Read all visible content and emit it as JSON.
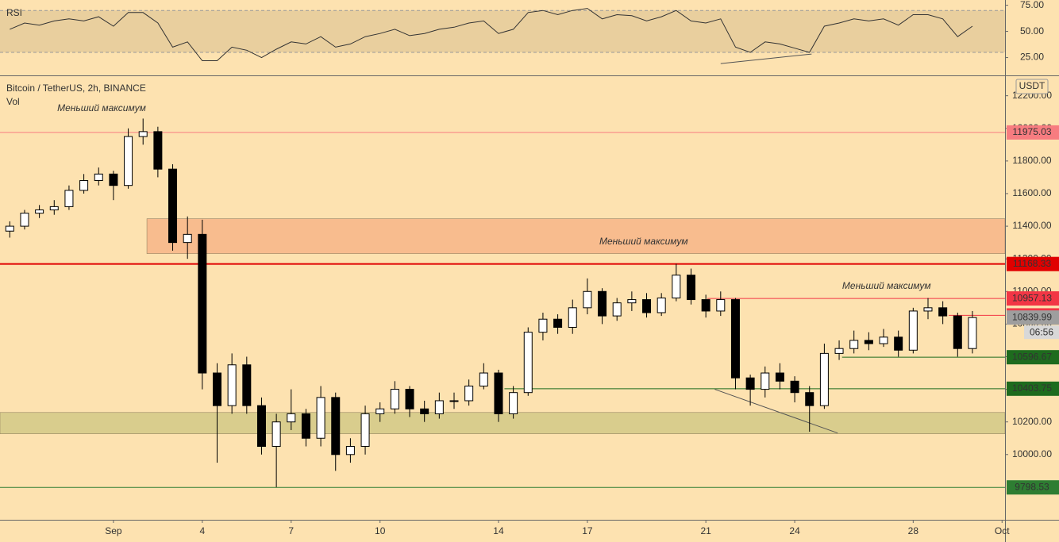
{
  "chart_data": [
    {
      "type": "candlestick",
      "title": "Bitcoin / TetherUS, 2h, BINANCE",
      "volume_label": "Vol",
      "axis_unit": "USDT",
      "x": [
        -3.5,
        -3,
        -2.5,
        -2,
        -1.5,
        -1,
        -0.5,
        0,
        0.5,
        1,
        1.5,
        2,
        2.5,
        3,
        3.5,
        4,
        4.5,
        5,
        5.5,
        6,
        6.5,
        7,
        7.5,
        8,
        8.5,
        9,
        9.5,
        10,
        10.5,
        11,
        11.5,
        12,
        12.5,
        13,
        13.5,
        14,
        14.5,
        15,
        15.5,
        16,
        16.5,
        17,
        17.5,
        18,
        18.5,
        19,
        19.5,
        20,
        20.5,
        21,
        21.5,
        22,
        22.5,
        23,
        23.5,
        24,
        24.5,
        25,
        25.5,
        26,
        26.5,
        27,
        27.5,
        28,
        28.5,
        29
      ],
      "open": [
        11370,
        11400,
        11480,
        11500,
        11520,
        11620,
        11680,
        11720,
        11650,
        11950,
        11980,
        11750,
        11300,
        11350,
        10500,
        10300,
        10550,
        10300,
        10050,
        10200,
        10250,
        10100,
        10350,
        10000,
        10050,
        10250,
        10280,
        10400,
        10280,
        10250,
        10330,
        10330,
        10420,
        10500,
        10250,
        10380,
        10750,
        10830,
        10780,
        10900,
        11000,
        10850,
        10930,
        10950,
        10870,
        10960,
        11100,
        10950,
        10880,
        10950,
        10470,
        10400,
        10500,
        10450,
        10380,
        10300,
        10620,
        10650,
        10700,
        10680,
        10720,
        10640,
        10880,
        10900,
        10850,
        10650
      ],
      "high": [
        11430,
        11500,
        11530,
        11560,
        11650,
        11720,
        11760,
        11740,
        12000,
        12060,
        12010,
        11780,
        11460,
        11440,
        10560,
        10620,
        10600,
        10350,
        10250,
        10400,
        10280,
        10420,
        10380,
        10100,
        10300,
        10320,
        10450,
        10420,
        10330,
        10380,
        10380,
        10460,
        10560,
        10520,
        10420,
        10780,
        10870,
        10860,
        10950,
        11080,
        11020,
        10960,
        11000,
        10990,
        10990,
        11170,
        11140,
        10980,
        11000,
        10960,
        10490,
        10540,
        10560,
        10480,
        10420,
        10680,
        10700,
        10760,
        10750,
        10770,
        10760,
        10900,
        10960,
        10940,
        10870,
        10880
      ],
      "low": [
        11330,
        11380,
        11450,
        11470,
        11500,
        11600,
        11650,
        11560,
        11630,
        11900,
        11700,
        11250,
        11200,
        10400,
        9950,
        10250,
        10250,
        10000,
        9800,
        10150,
        10050,
        10050,
        9900,
        9950,
        10000,
        10200,
        10250,
        10230,
        10200,
        10220,
        10280,
        10300,
        10400,
        10200,
        10220,
        10360,
        10700,
        10740,
        10740,
        10860,
        10800,
        10820,
        10880,
        10840,
        10850,
        10940,
        10920,
        10840,
        10850,
        10400,
        10300,
        10350,
        10400,
        10320,
        10140,
        10280,
        10580,
        10620,
        10640,
        10660,
        10600,
        10620,
        10830,
        10800,
        10600,
        10620
      ],
      "close": [
        11400,
        11480,
        11500,
        11520,
        11620,
        11680,
        11720,
        11650,
        11950,
        11980,
        11750,
        11300,
        11350,
        10500,
        10300,
        10550,
        10300,
        10050,
        10200,
        10250,
        10100,
        10350,
        10000,
        10050,
        10250,
        10280,
        10400,
        10280,
        10250,
        10330,
        10330,
        10420,
        10500,
        10250,
        10380,
        10750,
        10830,
        10780,
        10900,
        11000,
        10850,
        10930,
        10950,
        10870,
        10960,
        11100,
        10950,
        10880,
        10950,
        10470,
        10400,
        10500,
        10450,
        10380,
        10300,
        10620,
        10650,
        10700,
        10680,
        10720,
        10640,
        10880,
        10900,
        10850,
        10650,
        10840
      ],
      "up_color": "#ffffff",
      "down_color": "#000000",
      "xlim": [
        -3.83,
        30.1
      ],
      "xticks": [
        {
          "value": 0,
          "label": "Sep"
        },
        {
          "value": 3,
          "label": "4"
        },
        {
          "value": 6,
          "label": "7"
        },
        {
          "value": 9,
          "label": "10"
        },
        {
          "value": 13,
          "label": "14"
        },
        {
          "value": 16,
          "label": "17"
        },
        {
          "value": 20,
          "label": "21"
        },
        {
          "value": 23,
          "label": "24"
        },
        {
          "value": 27,
          "label": "28"
        },
        {
          "value": 30,
          "label": "Oct"
        }
      ],
      "ylim": [
        9600,
        12320
      ],
      "yticks": [
        {
          "value": 10000,
          "label": "10000.00"
        },
        {
          "value": 10200,
          "label": "10200.00"
        },
        {
          "value": 10400,
          "label": "10400.00"
        },
        {
          "value": 10600,
          "label": "10600.00"
        },
        {
          "value": 10800,
          "label": "10800.00"
        },
        {
          "value": 11000,
          "label": "11000.00"
        },
        {
          "value": 11200,
          "label": "11200.00"
        },
        {
          "value": 11400,
          "label": "11400.00"
        },
        {
          "value": 11600,
          "label": "11600.00"
        },
        {
          "value": 11800,
          "label": "11800.00"
        },
        {
          "value": 12000,
          "label": "12000.00"
        },
        {
          "value": 12200,
          "label": "12200.00"
        }
      ],
      "grid": false,
      "levels": [
        {
          "price": 11975.03,
          "color": "#f77c80"
        },
        {
          "price": 11168.33,
          "color": "#e00000"
        },
        {
          "price": 10957.13,
          "color": "#f23645",
          "x_start": 20.05
        },
        {
          "price": 10853.31,
          "color": "#f23645",
          "x_start": 28.2
        },
        {
          "price": 10596.67,
          "color": "#1e6b1e",
          "x_start": 24.6
        },
        {
          "price": 10403.75,
          "color": "#1e6b1e",
          "x_start": 13.2
        },
        {
          "price": 9798.53,
          "color": "#2e7d32"
        }
      ],
      "last_price": 10839.99,
      "countdown": "06:56",
      "zones": [
        {
          "top": 11446,
          "bottom": 11232,
          "x_start": 1.13,
          "color": "#f8b88b"
        },
        {
          "top": 10258,
          "bottom": 10127,
          "color": "#d6cb8a"
        }
      ],
      "trend_lines": [
        {
          "x": [
            20.3,
            24.45
          ],
          "prices": [
            10400,
            10132
          ]
        }
      ],
      "annotations": [
        {
          "text": "Меньший максимум",
          "x": -0.4,
          "price": 12122
        },
        {
          "text": "Меньший максимум",
          "x": 17.9,
          "price": 11305
        },
        {
          "text": "Меньший максимум",
          "x": 26.1,
          "price": 11032
        }
      ]
    },
    {
      "type": "line",
      "title": "RSI",
      "x": [
        -3.5,
        -3,
        -2.5,
        -2,
        -1.5,
        -1,
        -0.5,
        0,
        0.5,
        1,
        1.5,
        2,
        2.5,
        3,
        3.5,
        4,
        4.5,
        5,
        5.5,
        6,
        6.5,
        7,
        7.5,
        8,
        8.5,
        9,
        9.5,
        10,
        10.5,
        11,
        11.5,
        12,
        12.5,
        13,
        13.5,
        14,
        14.5,
        15,
        15.5,
        16,
        16.5,
        17,
        17.5,
        18,
        18.5,
        19,
        19.5,
        20,
        20.5,
        21,
        21.5,
        22,
        22.5,
        23,
        23.5,
        24,
        24.5,
        25,
        25.5,
        26,
        26.5,
        27,
        27.5,
        28,
        28.5,
        29
      ],
      "values": [
        52,
        58,
        56,
        60,
        62,
        60,
        64,
        55,
        68,
        68,
        58,
        35,
        40,
        22,
        22,
        35,
        32,
        25,
        33,
        40,
        38,
        45,
        35,
        38,
        45,
        48,
        52,
        46,
        48,
        52,
        54,
        58,
        60,
        48,
        52,
        68,
        70,
        66,
        70,
        72,
        62,
        66,
        65,
        60,
        64,
        70,
        60,
        58,
        62,
        35,
        30,
        40,
        38,
        34,
        30,
        55,
        58,
        62,
        60,
        62,
        56,
        66,
        66,
        62,
        45,
        55
      ],
      "color": "#333333",
      "xlim": [
        -3.83,
        30.1
      ],
      "ylim": [
        8,
        80
      ],
      "yticks": [
        {
          "value": 25,
          "label": "25.00"
        },
        {
          "value": 50,
          "label": "50.00"
        },
        {
          "value": 75,
          "label": "75.00"
        }
      ],
      "band": [
        30,
        70
      ],
      "trend_lines": [
        {
          "x": [
            20.5,
            23.57
          ],
          "values": [
            19.3,
            28.4
          ]
        }
      ]
    }
  ]
}
